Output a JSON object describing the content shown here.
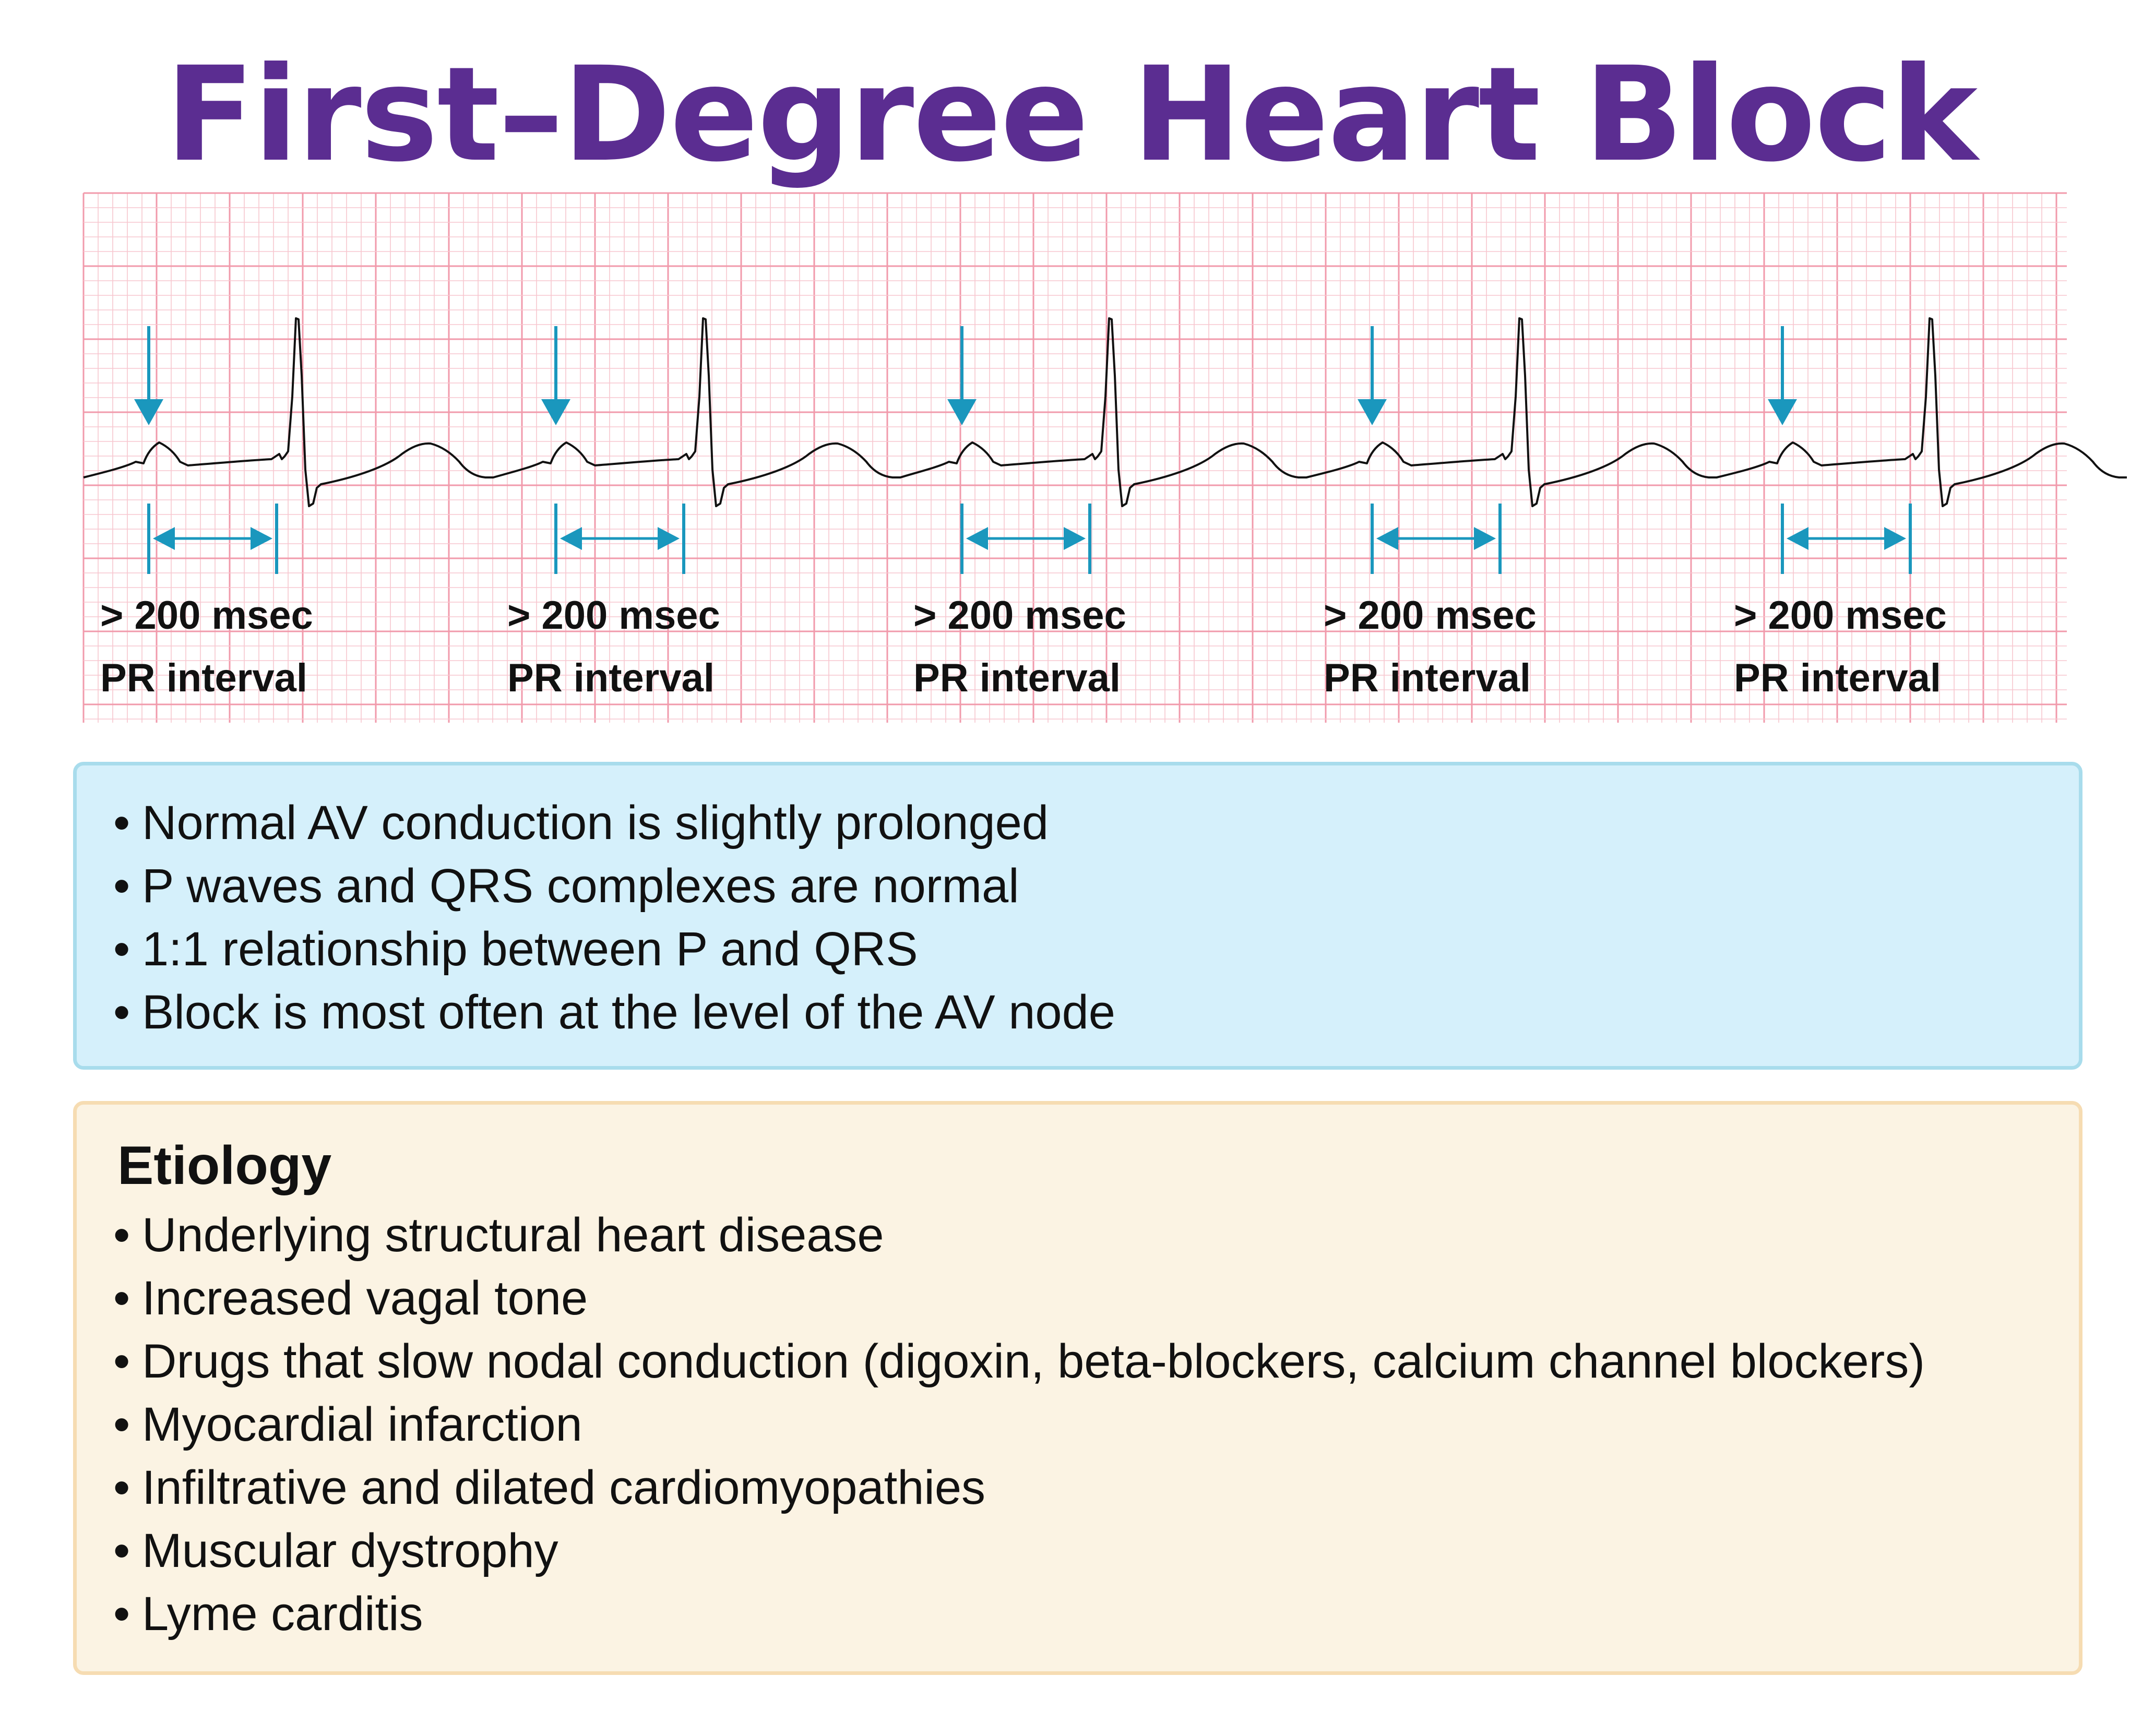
{
  "title": "First–Degree Heart Block",
  "colors": {
    "title": "#5b2d91",
    "ecg_trace": "#111111",
    "marker_arrows": "#1a97bd",
    "grid_minor": "#f7c6cf",
    "grid_major": "#f19aab",
    "features_box": "#d5f0fb",
    "etiology_box": "#fbf3e3"
  },
  "ecg": {
    "beats": [
      {
        "pr_value": "> 200 msec",
        "pr_label": "PR interval"
      },
      {
        "pr_value": "> 200 msec",
        "pr_label": "PR interval"
      },
      {
        "pr_value": "> 200 msec",
        "pr_label": "PR interval"
      },
      {
        "pr_value": "> 200 msec",
        "pr_label": "PR interval"
      },
      {
        "pr_value": "> 200 msec",
        "pr_label": "PR interval"
      }
    ]
  },
  "features": [
    "Normal AV conduction is slightly prolonged",
    "P waves and QRS complexes are normal",
    "1:1 relationship between P and QRS",
    "Block is most often at the level of the AV node"
  ],
  "etiology": {
    "heading": "Etiology",
    "items": [
      "Underlying structural heart disease",
      "Increased vagal tone",
      "Drugs that slow nodal conduction (digoxin, beta-blockers, calcium channel blockers)",
      "Myocardial infarction",
      "Infiltrative and dilated cardiomyopathies",
      "Muscular dystrophy",
      "Lyme carditis"
    ]
  }
}
